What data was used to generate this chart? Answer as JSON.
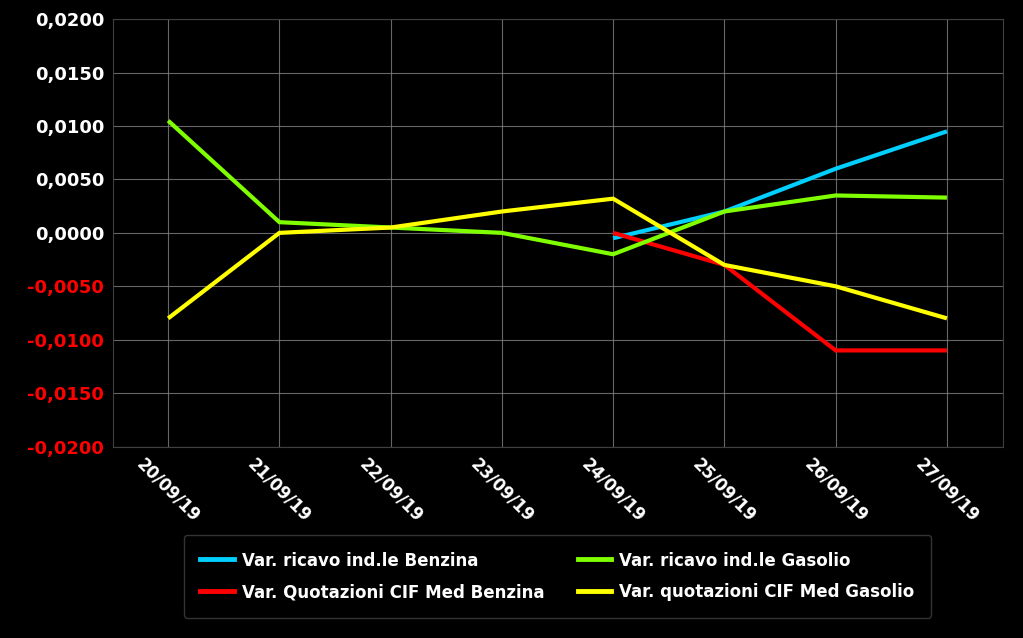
{
  "dates": [
    "20/09/19",
    "21/09/19",
    "22/09/19",
    "23/09/19",
    "24/09/19",
    "25/09/19",
    "26/09/19",
    "27/09/19"
  ],
  "series": [
    {
      "key": "var_ricavo_benzina",
      "label": "Var. ricavo ind.le Benzina",
      "color": "#00CFFF",
      "values": [
        null,
        null,
        null,
        null,
        -0.0005,
        0.002,
        0.006,
        0.0095
      ]
    },
    {
      "key": "var_quotazioni_cif_benzina",
      "label": "Var. Quotazioni CIF Med Benzina",
      "color": "#FF0000",
      "values": [
        null,
        null,
        null,
        null,
        0.0,
        -0.003,
        -0.011,
        -0.011
      ]
    },
    {
      "key": "var_ricavo_gasolio",
      "label": "Var. ricavo ind.le Gasolio",
      "color": "#7FFF00",
      "values": [
        0.0105,
        0.001,
        0.0005,
        0.0,
        -0.002,
        0.002,
        0.0035,
        0.0033
      ]
    },
    {
      "key": "var_quotazioni_cif_gasolio",
      "label": "Var. quotazioni CIF Med Gasolio",
      "color": "#FFFF00",
      "values": [
        -0.008,
        0.0,
        0.0005,
        0.002,
        0.0032,
        -0.003,
        -0.005,
        -0.008
      ]
    }
  ],
  "ylim": [
    -0.02,
    0.02
  ],
  "yticks": [
    -0.02,
    -0.015,
    -0.01,
    -0.005,
    0.0,
    0.005,
    0.01,
    0.015,
    0.02
  ],
  "background_color": "#000000",
  "plot_bg_color": "#000000",
  "grid_color": "#808080",
  "text_color": "#FFFFFF",
  "axis_label_color_pos": "#FFFFFF",
  "axis_label_color_neg": "#FF0000",
  "line_width": 3.0,
  "legend_order": [
    0,
    1,
    2,
    3
  ]
}
